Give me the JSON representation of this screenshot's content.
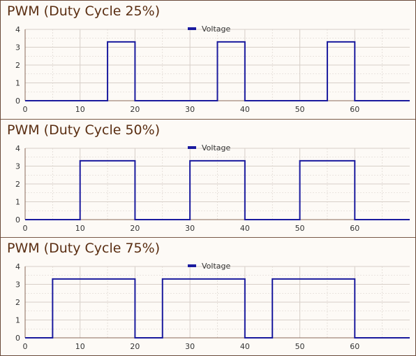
{
  "colors": {
    "line": "#1a1a9e",
    "grid": "#d7cfc8",
    "axis": "#8a6a5a",
    "title": "#5a2e12",
    "background": "#fdfaf6"
  },
  "chart_data": [
    {
      "type": "line",
      "title": "PWM (Duty Cycle 25%)",
      "xlim": [
        0,
        70
      ],
      "ylim": [
        0,
        4
      ],
      "x_ticks": [
        0,
        10,
        20,
        30,
        40,
        50,
        60
      ],
      "y_ticks": [
        0,
        1,
        2,
        3,
        4
      ],
      "grid": true,
      "legend_position": "top-center",
      "series": [
        {
          "name": "Voltage",
          "color": "#1a1a9e",
          "x": [
            0,
            15,
            15,
            20,
            20,
            35,
            35,
            40,
            40,
            55,
            55,
            60,
            60,
            70
          ],
          "y": [
            0,
            0,
            3.3,
            3.3,
            0,
            0,
            3.3,
            3.3,
            0,
            0,
            3.3,
            3.3,
            0,
            0
          ]
        }
      ]
    },
    {
      "type": "line",
      "title": "PWM (Duty Cycle 50%)",
      "xlim": [
        0,
        70
      ],
      "ylim": [
        0,
        4
      ],
      "x_ticks": [
        0,
        10,
        20,
        30,
        40,
        50,
        60
      ],
      "y_ticks": [
        0,
        1,
        2,
        3,
        4
      ],
      "grid": true,
      "legend_position": "top-center",
      "series": [
        {
          "name": "Voltage",
          "color": "#1a1a9e",
          "x": [
            0,
            10,
            10,
            20,
            20,
            30,
            30,
            40,
            40,
            50,
            50,
            60,
            60,
            70
          ],
          "y": [
            0,
            0,
            3.3,
            3.3,
            0,
            0,
            3.3,
            3.3,
            0,
            0,
            3.3,
            3.3,
            0,
            0
          ]
        }
      ]
    },
    {
      "type": "line",
      "title": "PWM (Duty Cycle 75%)",
      "xlim": [
        0,
        70
      ],
      "ylim": [
        0,
        4
      ],
      "x_ticks": [
        0,
        10,
        20,
        30,
        40,
        50,
        60
      ],
      "y_ticks": [
        0,
        1,
        2,
        3,
        4
      ],
      "grid": true,
      "legend_position": "top-center",
      "series": [
        {
          "name": "Voltage",
          "color": "#1a1a9e",
          "x": [
            0,
            5,
            5,
            20,
            20,
            25,
            25,
            40,
            40,
            45,
            45,
            60,
            60,
            70
          ],
          "y": [
            0,
            0,
            3.3,
            3.3,
            0,
            0,
            3.3,
            3.3,
            0,
            0,
            3.3,
            3.3,
            0,
            0
          ]
        }
      ]
    }
  ]
}
